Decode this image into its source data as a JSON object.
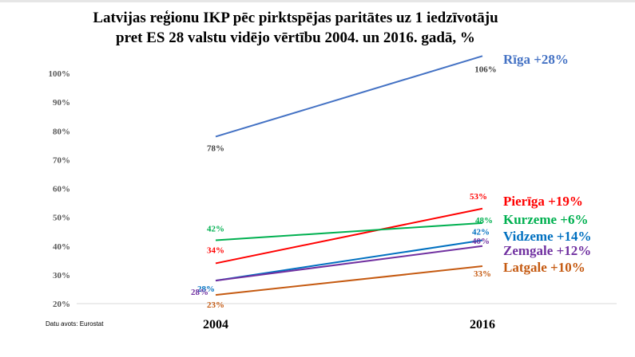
{
  "chart_data": {
    "type": "line",
    "title": "Latvijas reģionu IKP pēc pirktspējas paritātes uz 1 iedzīvotāju",
    "subtitle": "pret ES 28 valstu vidējo vērtību 2004. un 2016. gadā, %",
    "x": [
      "2004",
      "2016"
    ],
    "ylim": [
      20,
      100
    ],
    "yticks": [
      "20%",
      "30%",
      "40%",
      "50%",
      "60%",
      "70%",
      "80%",
      "90%",
      "100%"
    ],
    "grid": false,
    "series": [
      {
        "name": "Rīga +28%",
        "values": [
          78,
          106
        ],
        "labels": [
          "78%",
          "106%"
        ],
        "color": "#4472c4",
        "label_color": "#404040"
      },
      {
        "name": "Pierīga +19%",
        "values": [
          34,
          53
        ],
        "labels": [
          "34%",
          "53%"
        ],
        "color": "#ff0000",
        "label_color": "#ff0000"
      },
      {
        "name": "Kurzeme +6%",
        "values": [
          42,
          48
        ],
        "labels": [
          "42%",
          "48%"
        ],
        "color": "#00b050",
        "label_color": "#00b050"
      },
      {
        "name": "Vidzeme +14%",
        "values": [
          28,
          42
        ],
        "labels": [
          "28%",
          "42%"
        ],
        "color": "#0070c0",
        "label_color": "#0070c0"
      },
      {
        "name": "Zemgale +12%",
        "values": [
          28,
          40
        ],
        "labels": [
          "28%",
          "40%"
        ],
        "color": "#7030a0",
        "label_color": "#7030a0"
      },
      {
        "name": "Latgale +10%",
        "values": [
          23,
          33
        ],
        "labels": [
          "23%",
          "33%"
        ],
        "color": "#c55a11",
        "label_color": "#c55a11"
      }
    ]
  },
  "source": "Datu avots: Eurostat"
}
